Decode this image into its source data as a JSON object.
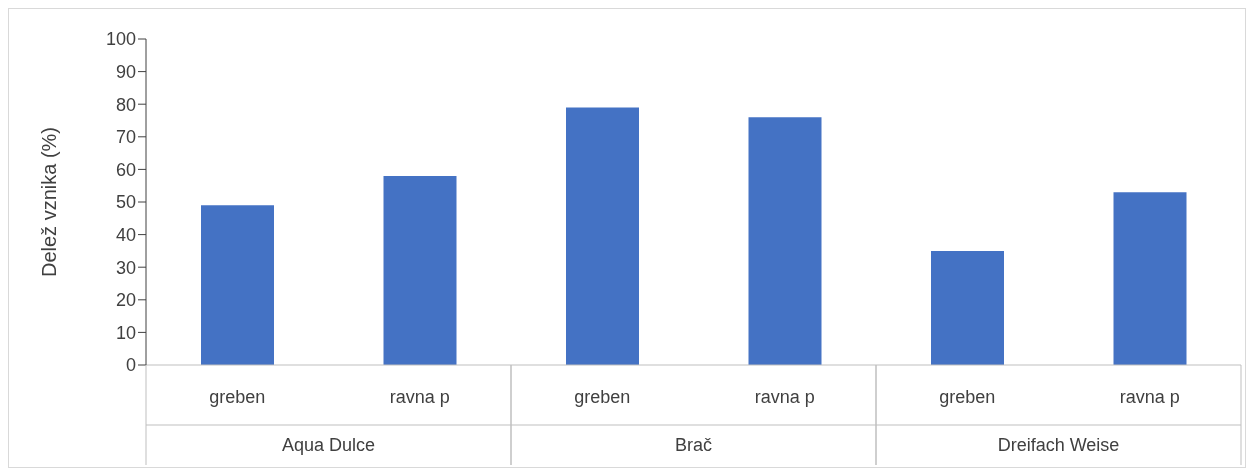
{
  "chart_data": {
    "type": "bar",
    "ylabel": "Delež vznika (%)",
    "categories": [
      "greben",
      "ravna p",
      "greben",
      "ravna p",
      "greben",
      "ravna p"
    ],
    "values": [
      49,
      58,
      79,
      76,
      35,
      53
    ],
    "color": "#4472c4",
    "annotations": [
      "Aqua Dulce",
      "Brač",
      "Dreifach Weise"
    ],
    "ylim": [
      0,
      100
    ],
    "yticks": [
      0,
      10,
      20,
      30,
      40,
      50,
      60,
      70,
      80,
      90,
      100
    ],
    "grid": false
  }
}
